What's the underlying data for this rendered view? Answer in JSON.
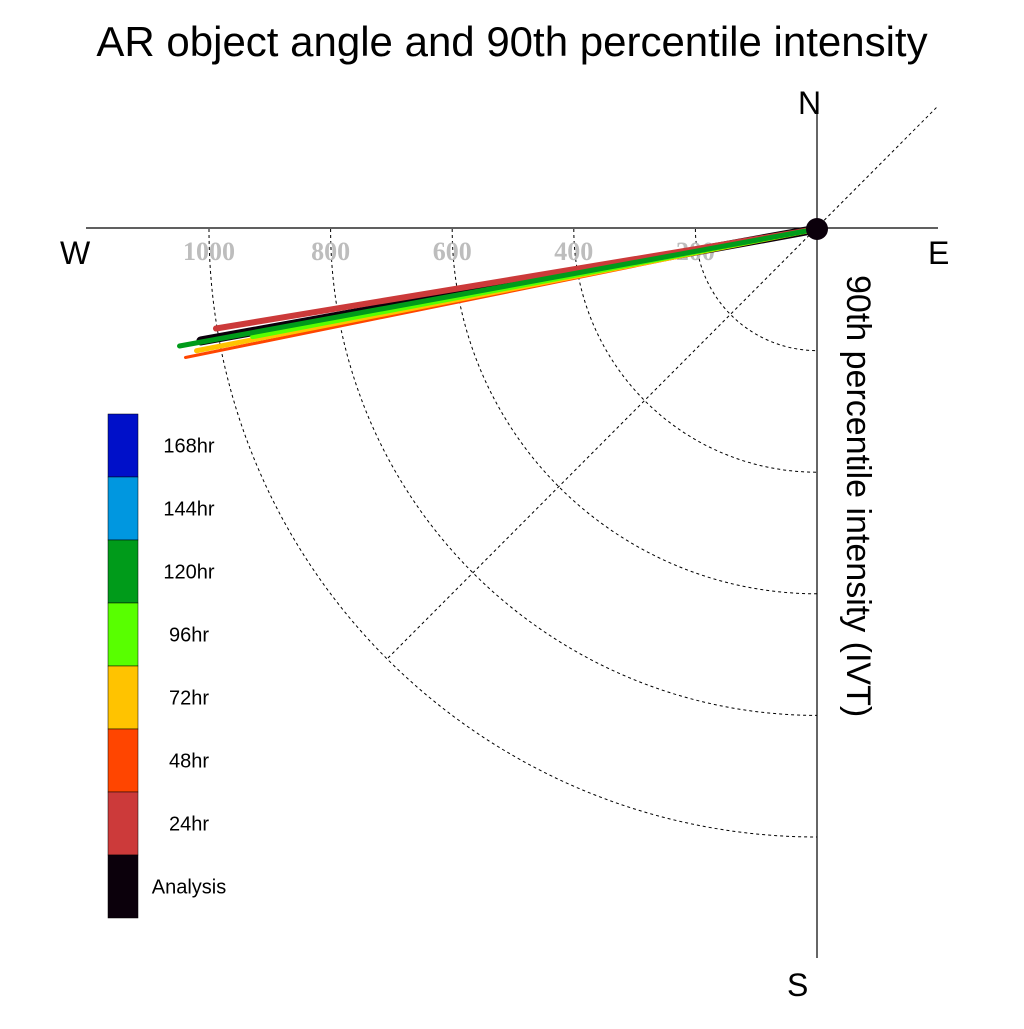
{
  "chart_data": {
    "type": "polar-vector",
    "title": "AR object angle and 90th percentile intensity",
    "radial_label": "90th percentile intensity (IVT)",
    "compass": {
      "north": "N",
      "south": "S",
      "east": "E",
      "west": "W"
    },
    "radial_ticks": [
      200,
      400,
      600,
      800,
      1000
    ],
    "radial_max": 1000,
    "series": [
      {
        "name": "Analysis",
        "color": "#0b000b",
        "angle_deg_ccw_from_west": 10.3,
        "intensity": 1030,
        "width": 9
      },
      {
        "name": "24hr",
        "color": "#cc3a3a",
        "angle_deg_ccw_from_west": 9.4,
        "intensity": 1002,
        "width": 6
      },
      {
        "name": "48hr",
        "color": "#ff4500",
        "angle_deg_ccw_from_west": 11.5,
        "intensity": 1060,
        "width": 3
      },
      {
        "name": "72hr",
        "color": "#ffc300",
        "angle_deg_ccw_from_west": 11.1,
        "intensity": 1040,
        "width": 5
      },
      {
        "name": "96hr",
        "color": "#58ff00",
        "angle_deg_ccw_from_west": 10.8,
        "intensity": 945,
        "width": 5
      },
      {
        "name": "120hr",
        "color": "#009b1a",
        "angle_deg_ccw_from_west": 10.4,
        "intensity": 1066,
        "width": 5
      }
    ],
    "legend": [
      {
        "label": "168hr",
        "color": "#0010c9"
      },
      {
        "label": "144hr",
        "color": "#0097e0"
      },
      {
        "label": "120hr",
        "color": "#009b1a"
      },
      {
        "label": "96hr",
        "color": "#58ff00"
      },
      {
        "label": "72hr",
        "color": "#ffc300"
      },
      {
        "label": "48hr",
        "color": "#ff4500"
      },
      {
        "label": "24hr",
        "color": "#cc3a3a"
      },
      {
        "label": "Analysis",
        "color": "#0b000b"
      }
    ],
    "grid": true
  }
}
